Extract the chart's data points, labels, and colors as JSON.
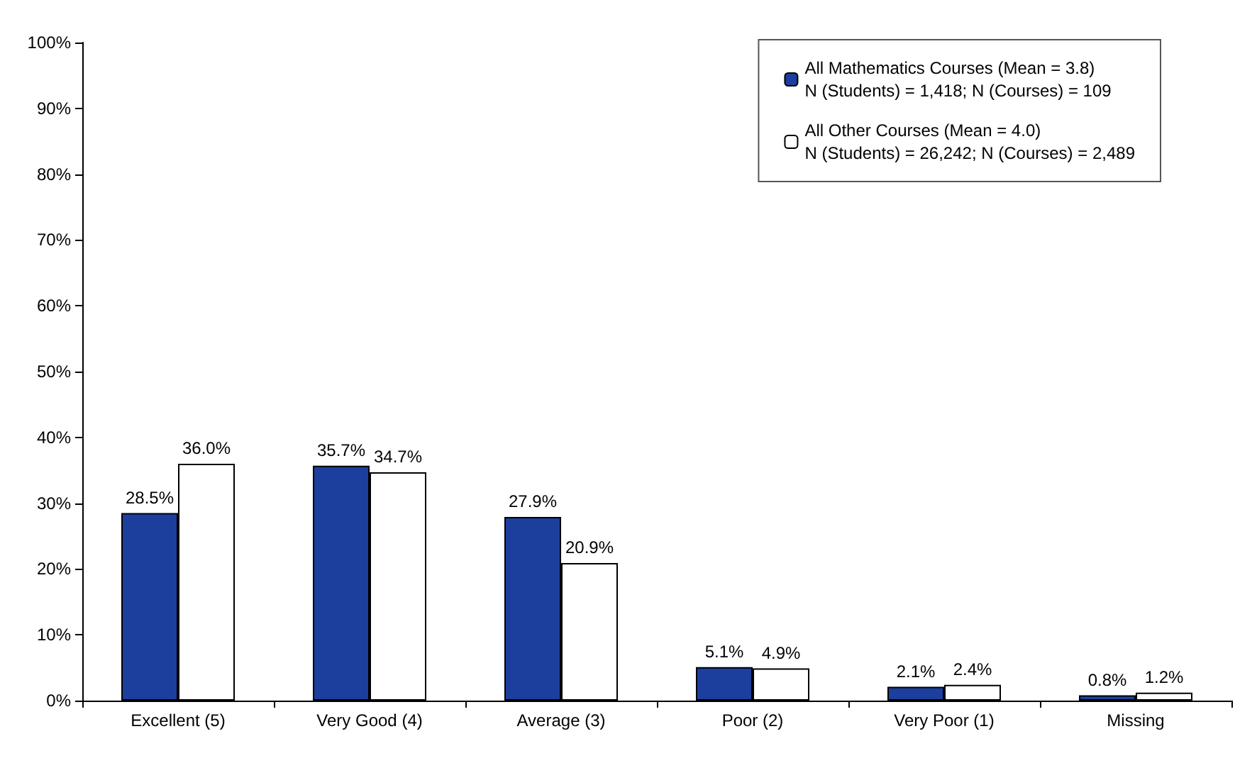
{
  "chart_data": {
    "type": "bar",
    "categories": [
      "Excellent (5)",
      "Very Good (4)",
      "Average (3)",
      "Poor (2)",
      "Very Poor (1)",
      "Missing"
    ],
    "series": [
      {
        "name": "All Mathematics Courses (Mean = 3.8)\nN (Students) = 1,418; N (Courses) = 109",
        "color": "#1c3f9e",
        "values": [
          28.5,
          35.7,
          27.9,
          5.1,
          2.1,
          0.8
        ],
        "value_labels": [
          "28.5%",
          "35.7%",
          "27.9%",
          "5.1%",
          "2.1%",
          "0.8%"
        ]
      },
      {
        "name": "All Other Courses (Mean = 4.0)\nN (Students) = 26,242; N (Courses) = 2,489",
        "color": "#ffffff",
        "values": [
          36.0,
          34.7,
          20.9,
          4.9,
          2.4,
          1.2
        ],
        "value_labels": [
          "36.0%",
          "34.7%",
          "20.9%",
          "4.9%",
          "2.4%",
          "1.2%"
        ]
      }
    ],
    "ylim": [
      0,
      100
    ],
    "yticks": [
      {
        "value": 0,
        "label": "0%"
      },
      {
        "value": 10,
        "label": "10%"
      },
      {
        "value": 20,
        "label": "20%"
      },
      {
        "value": 30,
        "label": "30%"
      },
      {
        "value": 40,
        "label": "40%"
      },
      {
        "value": 50,
        "label": "50%"
      },
      {
        "value": 60,
        "label": "60%"
      },
      {
        "value": 70,
        "label": "70%"
      },
      {
        "value": 80,
        "label": "80%"
      },
      {
        "value": 90,
        "label": "90%"
      },
      {
        "value": 100,
        "label": "100%"
      }
    ],
    "grid": false,
    "legend": "top right"
  }
}
